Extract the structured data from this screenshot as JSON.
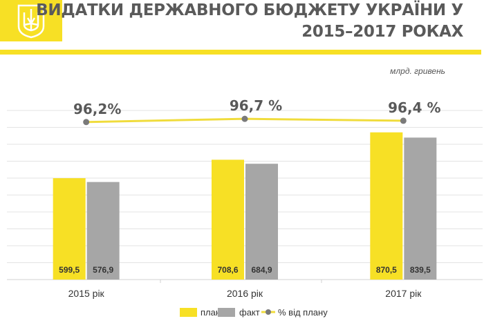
{
  "header": {
    "title_line1": "ВИДАТКИ ДЕРЖАВНОГО БЮДЖЕТУ УКРАЇНИ У",
    "title_line2": "2015–2017 РОКАХ",
    "unit": "млрд. гривень"
  },
  "colors": {
    "accent": "#f7e025",
    "plan": "#f7e025",
    "fact": "#a6a6a6",
    "line": "#f0dc3c",
    "marker": "#7a7a7a",
    "grid": "#e3e3e3",
    "title": "#5a5a5a"
  },
  "chart_data": {
    "type": "bar",
    "categories": [
      "2015 рік",
      "2016 рік",
      "2017 рік"
    ],
    "series": [
      {
        "name": "план",
        "values": [
          599.5,
          708.6,
          870.5
        ],
        "labels": [
          "599,5",
          "708,6",
          "870,5"
        ]
      },
      {
        "name": "факт",
        "values": [
          576.9,
          684.9,
          839.5
        ],
        "labels": [
          "576,9",
          "684,9",
          "839,5"
        ]
      }
    ],
    "line_series": {
      "name": "% від плану",
      "values": [
        96.2,
        96.7,
        96.4
      ],
      "labels": [
        "96,2%",
        "96,7 %",
        "96,4 %"
      ]
    },
    "ylim": [
      0,
      1000
    ],
    "grid": true,
    "legend_position": "bottom"
  }
}
